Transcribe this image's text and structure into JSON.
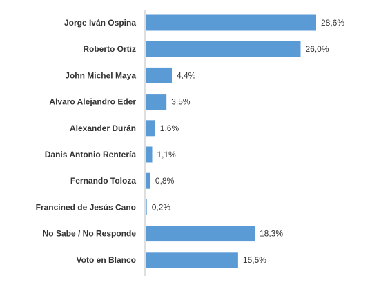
{
  "chart_data": {
    "type": "bar",
    "orientation": "horizontal",
    "categories": [
      "Jorge Iván Ospina",
      "Roberto Ortiz",
      "John Michel Maya",
      "Alvaro Alejandro Eder",
      "Alexander Durán",
      "Danis Antonio Rentería",
      "Fernando Toloza",
      "Francined de Jesús Cano",
      "No Sabe / No Responde",
      "Voto en Blanco"
    ],
    "values": [
      28.6,
      26.0,
      4.4,
      3.5,
      1.6,
      1.1,
      0.8,
      0.2,
      18.3,
      15.5
    ],
    "value_labels": [
      "28,6%",
      "26,0%",
      "4,4%",
      "3,5%",
      "1,6%",
      "1,1%",
      "0,8%",
      "0,2%",
      "18,3%",
      "15,5%"
    ],
    "title": "",
    "xlabel": "",
    "ylabel": "",
    "xlim": [
      0,
      30
    ],
    "grid": false,
    "legend": "none",
    "bar_color": "#5B9BD5",
    "axis_color": "#BFBFBF"
  }
}
